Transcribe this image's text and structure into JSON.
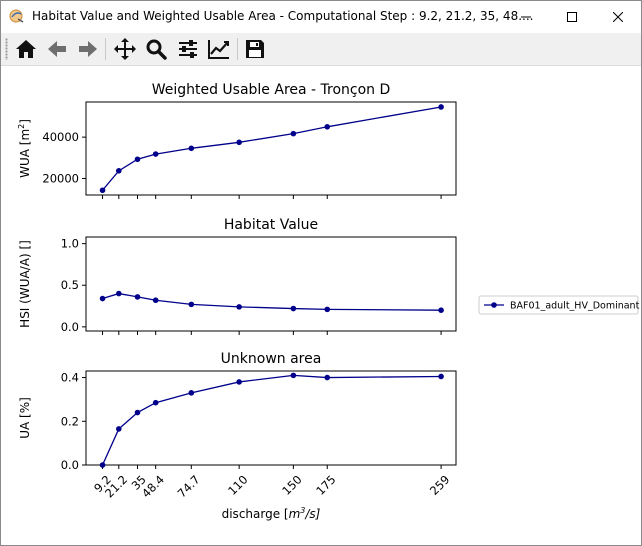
{
  "window": {
    "title": "Habitat Value and Weighted Usable Area - Computational Step : 9.2, 21.2, 35, 48....",
    "controls": {
      "minimize": "minimize",
      "maximize": "maximize",
      "close": "close"
    }
  },
  "toolbar": {
    "buttons": [
      "home-icon",
      "back-arrow-icon",
      "forward-arrow-icon",
      "pan-move-icon",
      "zoom-magnifier-icon",
      "subplots-config-icon",
      "edit-axis-curve-icon",
      "save-floppy-icon"
    ]
  },
  "colors": {
    "series": "#00008b",
    "axis": "#000000"
  },
  "figure": {
    "xlabel_prefix": "discharge [",
    "xlabel_unit": "m",
    "xlabel_exp": "3",
    "xlabel_suffix": "/s]",
    "legend_label": "BAF01_adult_HV_Dominant"
  },
  "chart_data": [
    {
      "type": "line",
      "title": "Weighted Usable Area - Tronçon D",
      "ylabel": "WUA [m²]",
      "ylabel_base": "WUA [m",
      "ylabel_exp": "2",
      "ylabel_close": "]",
      "x": [
        9.2,
        21.2,
        35,
        48.4,
        74.7,
        110,
        150,
        175,
        259
      ],
      "series": [
        {
          "name": "BAF01_adult_HV_Dominant",
          "values": [
            14300,
            23700,
            29300,
            31800,
            34600,
            37500,
            41700,
            45000,
            54600
          ]
        }
      ],
      "ylim": [
        12000,
        57000
      ],
      "yticks": [
        20000,
        40000
      ],
      "ytick_labels": [
        "20000",
        "40000"
      ]
    },
    {
      "type": "line",
      "title": "Habitat Value",
      "ylabel": "HSI (WUA/A) []",
      "x": [
        9.2,
        21.2,
        35,
        48.4,
        74.7,
        110,
        150,
        175,
        259
      ],
      "series": [
        {
          "name": "BAF01_adult_HV_Dominant",
          "values": [
            0.34,
            0.4,
            0.36,
            0.32,
            0.27,
            0.24,
            0.22,
            0.21,
            0.2
          ]
        }
      ],
      "ylim": [
        -0.05,
        1.08
      ],
      "yticks": [
        0.0,
        0.5,
        1.0
      ],
      "ytick_labels": [
        "0.0",
        "0.5",
        "1.0"
      ]
    },
    {
      "type": "line",
      "title": "Unknown area",
      "ylabel": "UA [%]",
      "x": [
        9.2,
        21.2,
        35,
        48.4,
        74.7,
        110,
        150,
        175,
        259
      ],
      "series": [
        {
          "name": "BAF01_adult_HV_Dominant",
          "values": [
            0.0,
            0.165,
            0.24,
            0.285,
            0.33,
            0.38,
            0.41,
            0.4,
            0.405
          ]
        }
      ],
      "ylim": [
        0.0,
        0.43
      ],
      "yticks": [
        0.0,
        0.2,
        0.4
      ],
      "ytick_labels": [
        "0.0",
        "0.2",
        "0.4"
      ],
      "xtick_labels": [
        "9.2",
        "21.2",
        "35",
        "48.4",
        "74.7",
        "110",
        "150",
        "175",
        "259"
      ]
    }
  ]
}
